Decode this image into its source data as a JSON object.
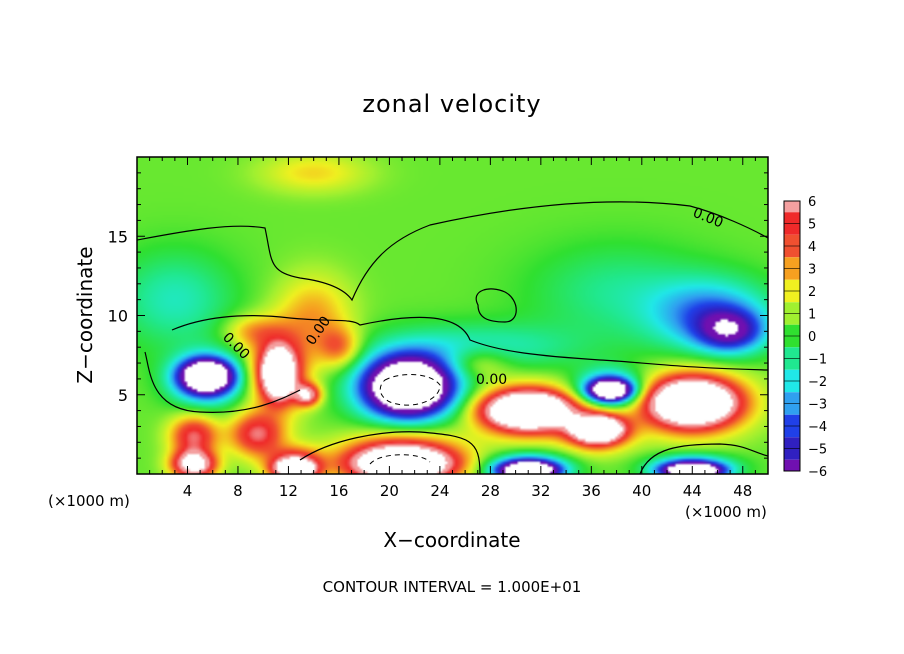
{
  "chart_data": {
    "type": "heatmap",
    "title": "zonal velocity",
    "xlabel": "X−coordinate",
    "ylabel": "Z−coordinate",
    "x_unit_left": "(×1000 m)",
    "x_unit_right": "(×1000 m)",
    "footer": "CONTOUR INTERVAL = 1.000E+01",
    "xlim": [
      0,
      50
    ],
    "ylim": [
      0,
      20
    ],
    "x_ticks": [
      4,
      8,
      12,
      16,
      20,
      24,
      28,
      32,
      36,
      40,
      44,
      48
    ],
    "x_tick_labels": [
      "4",
      "8",
      "12",
      "16",
      "20",
      "24",
      "28",
      "32",
      "36",
      "40",
      "44",
      "48"
    ],
    "y_ticks": [
      5,
      10,
      15
    ],
    "y_tick_labels": [
      "5",
      "10",
      "15"
    ],
    "colorbar": {
      "levels": [
        6,
        5,
        4,
        3,
        2,
        1,
        0,
        -1,
        -2,
        -3,
        -4,
        -5,
        -6
      ],
      "labels": [
        "6",
        "5",
        "4",
        "3",
        "2",
        "1",
        "0",
        "−1",
        "−2",
        "−3",
        "−4",
        "−5",
        "−6"
      ],
      "colors": [
        "#f4a0a0",
        "#ef2a2a",
        "#f05030",
        "#f6a020",
        "#f0f020",
        "#a0f030",
        "#30e030",
        "#20e890",
        "#20e8e8",
        "#30a0f0",
        "#2040e8",
        "#3020c0",
        "#7010b0"
      ]
    },
    "contour_labels": [
      "0.00",
      "0.00",
      "0.00",
      "0.00"
    ],
    "background_value": 0.5,
    "features": [
      {
        "kind": "blob",
        "x": 5.5,
        "z": 6,
        "rx": 3.2,
        "rz": 1.8,
        "value": -6
      },
      {
        "kind": "blob",
        "x": 5.5,
        "z": 6.2,
        "rx": 2.2,
        "rz": 1.1,
        "value": -9
      },
      {
        "kind": "blob",
        "x": 11.2,
        "z": 6.5,
        "rx": 2.6,
        "rz": 2.8,
        "value": 6
      },
      {
        "kind": "blob",
        "x": 11.2,
        "z": 6.3,
        "rx": 1.3,
        "rz": 1.6,
        "value": 9
      },
      {
        "kind": "blob",
        "x": 9.5,
        "z": 2.5,
        "rx": 2.5,
        "rz": 1.6,
        "value": 5
      },
      {
        "kind": "blob",
        "x": 13.5,
        "z": 5,
        "rx": 1.2,
        "rz": 0.8,
        "value": 6
      },
      {
        "kind": "blob",
        "x": 4.5,
        "z": 2.4,
        "rx": 2.2,
        "rz": 1.5,
        "value": 5
      },
      {
        "kind": "blob",
        "x": 4.5,
        "z": 0.6,
        "rx": 2.0,
        "rz": 1.0,
        "value": 8
      },
      {
        "kind": "blob",
        "x": 21.5,
        "z": 5.5,
        "rx": 4.8,
        "rz": 2.6,
        "value": -6
      },
      {
        "kind": "blob",
        "x": 21.5,
        "z": 5.5,
        "rx": 3.6,
        "rz": 1.9,
        "value": -9
      },
      {
        "kind": "blob",
        "x": 21,
        "z": 1.0,
        "rx": 5.5,
        "rz": 1.9,
        "value": 6
      },
      {
        "kind": "blob",
        "x": 21,
        "z": 0.6,
        "rx": 4.2,
        "rz": 1.1,
        "value": 9
      },
      {
        "kind": "blob",
        "x": 12.5,
        "z": 0.6,
        "rx": 2.5,
        "rz": 1.2,
        "value": 6
      },
      {
        "kind": "blob",
        "x": 12.5,
        "z": 0.3,
        "rx": 1.6,
        "rz": 0.6,
        "value": 9
      },
      {
        "kind": "blob",
        "x": 31,
        "z": 4,
        "rx": 4.8,
        "rz": 1.9,
        "value": 6
      },
      {
        "kind": "blob",
        "x": 31,
        "z": 4,
        "rx": 3.6,
        "rz": 1.2,
        "value": 9
      },
      {
        "kind": "blob",
        "x": 36.5,
        "z": 2.8,
        "rx": 3.0,
        "rz": 1.5,
        "value": 6
      },
      {
        "kind": "blob",
        "x": 36.5,
        "z": 2.8,
        "rx": 2.0,
        "rz": 0.8,
        "value": 9
      },
      {
        "kind": "blob",
        "x": 31,
        "z": 0.4,
        "rx": 3.5,
        "rz": 1.0,
        "value": -6
      },
      {
        "kind": "blob",
        "x": 31,
        "z": 0.2,
        "rx": 2.5,
        "rz": 0.6,
        "value": -9
      },
      {
        "kind": "blob",
        "x": 37.5,
        "z": 5.3,
        "rx": 3.0,
        "rz": 1.4,
        "value": -6
      },
      {
        "kind": "blob",
        "x": 37.5,
        "z": 5.3,
        "rx": 1.8,
        "rz": 0.7,
        "value": -9
      },
      {
        "kind": "blob",
        "x": 44,
        "z": 4.5,
        "rx": 5.0,
        "rz": 2.3,
        "value": 6
      },
      {
        "kind": "blob",
        "x": 44,
        "z": 4.5,
        "rx": 3.6,
        "rz": 1.5,
        "value": 9
      },
      {
        "kind": "blob",
        "x": 44,
        "z": 0.4,
        "rx": 3.6,
        "rz": 0.9,
        "value": -6
      },
      {
        "kind": "blob",
        "x": 44,
        "z": 0.2,
        "rx": 2.5,
        "rz": 0.5,
        "value": -9
      },
      {
        "kind": "blob",
        "x": 45.5,
        "z": 10,
        "rx": 5.5,
        "rz": 2.6,
        "value": -4
      },
      {
        "kind": "blob",
        "x": 47,
        "z": 9,
        "rx": 3.0,
        "rz": 1.5,
        "value": -5
      },
      {
        "kind": "blob",
        "x": 3,
        "z": 11,
        "rx": 5.5,
        "rz": 3.5,
        "value": -2
      },
      {
        "kind": "blob",
        "x": 38,
        "z": 11.5,
        "rx": 8.0,
        "rz": 3.5,
        "value": -1.5
      },
      {
        "kind": "blob",
        "x": 27.5,
        "z": 8,
        "rx": 9.0,
        "rz": 1.8,
        "value": -2
      },
      {
        "kind": "blob",
        "x": 14,
        "z": 10,
        "rx": 3.5,
        "rz": 3.0,
        "value": 2.5
      },
      {
        "kind": "blob",
        "x": 16,
        "z": 8,
        "rx": 2.0,
        "rz": 1.5,
        "value": 3
      },
      {
        "kind": "blob",
        "x": 14,
        "z": 19,
        "rx": 5.0,
        "rz": 1.5,
        "value": 1.8
      },
      {
        "kind": "blob",
        "x": 27,
        "z": 7,
        "rx": 3.0,
        "rz": 1.2,
        "value": 2
      },
      {
        "kind": "blob",
        "x": 9,
        "z": 9,
        "rx": 2.5,
        "rz": 1.2,
        "value": 2.2
      }
    ]
  }
}
